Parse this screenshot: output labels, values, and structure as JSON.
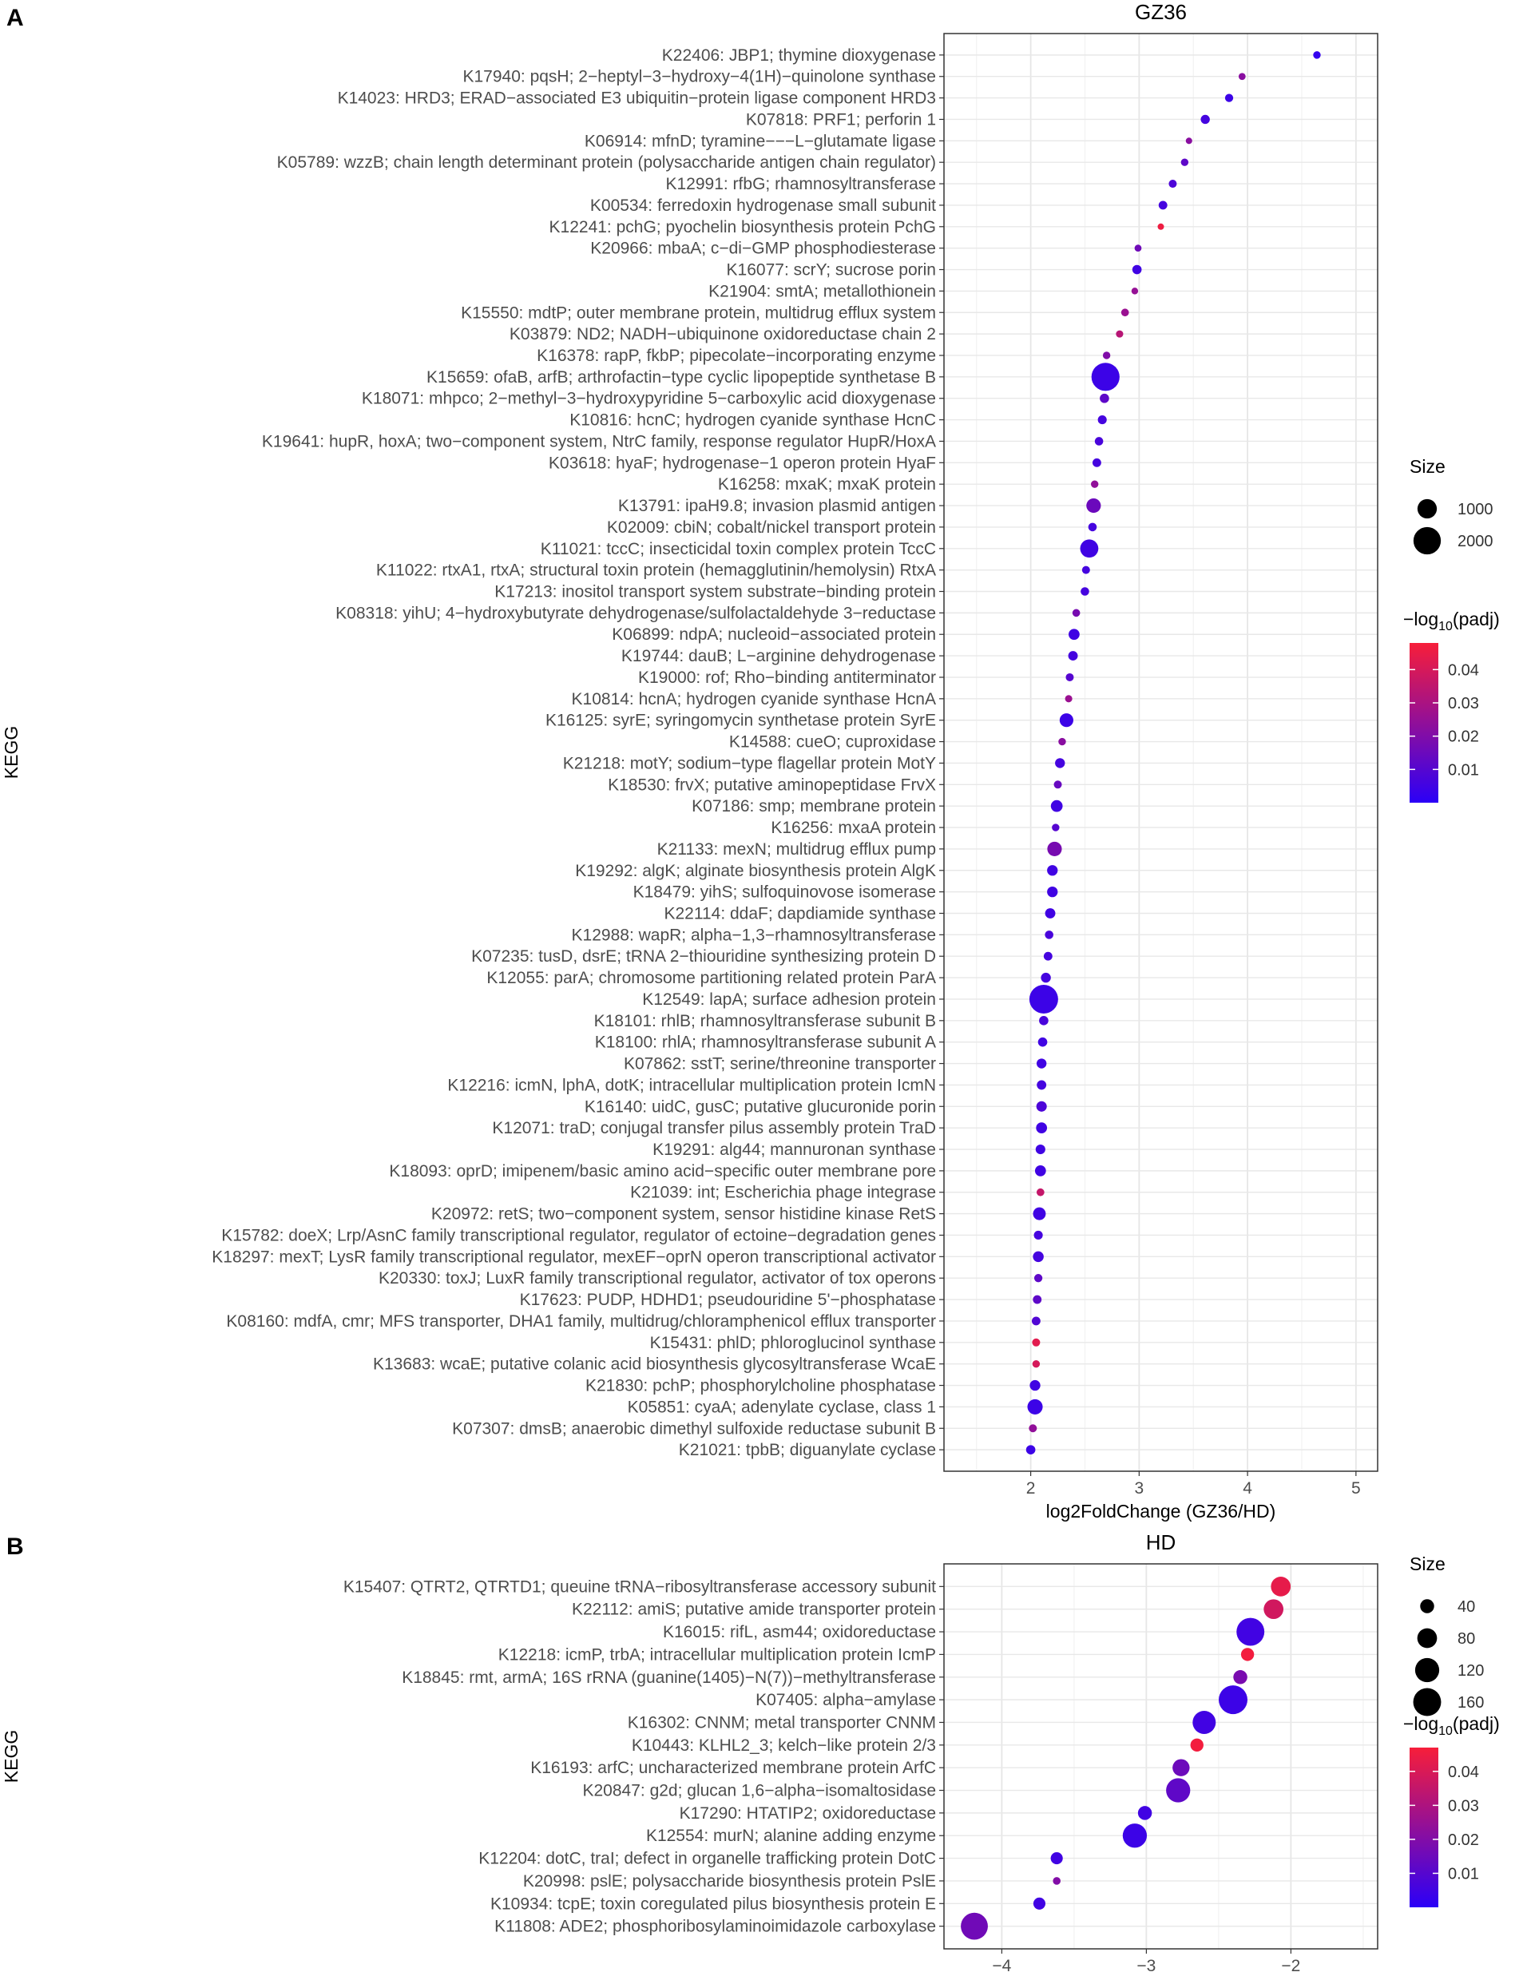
{
  "chart_data": [
    {
      "type": "scatter",
      "panel_label": "A",
      "title": "GZ36",
      "xlabel": "log2FoldChange (GZ36/HD)",
      "ylabel": "KEGG",
      "xlim": [
        1.2,
        5.2
      ],
      "xticks": [
        2,
        3,
        4,
        5
      ],
      "xtick_labels": [
        "2",
        "3",
        "4",
        "5"
      ],
      "grid": true,
      "legend_position": "right",
      "size_legend": {
        "title": "Size",
        "values": [
          1000,
          2000
        ],
        "labels": [
          "1000",
          "2000"
        ]
      },
      "color_legend": {
        "title_prefix": "−log",
        "title_sub": "10",
        "title_suffix": "(padj)",
        "min": 0.0,
        "max": 0.048,
        "ticks": [
          0.01,
          0.02,
          0.03,
          0.04
        ],
        "tick_labels": [
          "0.01",
          "0.02",
          "0.03",
          "0.04"
        ],
        "low_color": "#2B00F7",
        "high_color": "#F71E3A"
      },
      "points": [
        {
          "label": "K22406: JBP1; thymine dioxygenase",
          "x": 4.64,
          "size": 150,
          "padj": 0.002
        },
        {
          "label": "K17940: pqsH; 2−heptyl−3−hydroxy−4(1H)−quinolone synthase",
          "x": 3.95,
          "size": 130,
          "padj": 0.022
        },
        {
          "label": "K14023: HRD3; ERAD−associated E3 ubiquitin−protein ligase component HRD3",
          "x": 3.83,
          "size": 180,
          "padj": 0.004
        },
        {
          "label": "K07818: PRF1; perforin 1",
          "x": 3.61,
          "size": 220,
          "padj": 0.006
        },
        {
          "label": "K06914: mfnD; tyramine−−−L−glutamate ligase",
          "x": 3.46,
          "size": 110,
          "padj": 0.022
        },
        {
          "label": "K05789: wzzB; chain length determinant protein (polysaccharide antigen chain regulator)",
          "x": 3.42,
          "size": 150,
          "padj": 0.012
        },
        {
          "label": "K12991: rfbG; rhamnosyltransferase",
          "x": 3.31,
          "size": 170,
          "padj": 0.008
        },
        {
          "label": "K00534: ferredoxin hydrogenase small subunit",
          "x": 3.22,
          "size": 200,
          "padj": 0.006
        },
        {
          "label": "K12241: pchG; pyochelin biosynthesis protein PchG",
          "x": 3.2,
          "size": 90,
          "padj": 0.046
        },
        {
          "label": "K20966: mbaA; c−di−GMP phosphodiesterase",
          "x": 2.99,
          "size": 130,
          "padj": 0.016
        },
        {
          "label": "K16077: scrY; sucrose porin",
          "x": 2.98,
          "size": 230,
          "padj": 0.005
        },
        {
          "label": "K21904: smtA; metallothionein",
          "x": 2.96,
          "size": 120,
          "padj": 0.025
        },
        {
          "label": "K15550: mdtP; outer membrane protein, multidrug efflux system",
          "x": 2.87,
          "size": 160,
          "padj": 0.026
        },
        {
          "label": "K03879: ND2; NADH−ubiquinone oxidoreductase chain 2",
          "x": 2.82,
          "size": 140,
          "padj": 0.033
        },
        {
          "label": "K16378: rapP, fkbP; pipecolate−incorporating enzyme",
          "x": 2.7,
          "size": 150,
          "padj": 0.02
        },
        {
          "label": "K15659: ofaB, arfB; arthrofactin−type cyclic lipopeptide synthetase B",
          "x": 2.69,
          "size": 2100,
          "padj": 0.004
        },
        {
          "label": "K18071: mhpco; 2−methyl−3−hydroxypyridine 5−carboxylic acid dioxygenase",
          "x": 2.68,
          "size": 230,
          "padj": 0.012
        },
        {
          "label": "K10816: hcnC; hydrogen cyanide synthase HcnC",
          "x": 2.66,
          "size": 210,
          "padj": 0.006
        },
        {
          "label": "K19641: hupR, hoxA; two−component system, NtrC family, response regulator HupR/HoxA",
          "x": 2.63,
          "size": 190,
          "padj": 0.007
        },
        {
          "label": "K03618: hyaF; hydrogenase−1 operon protein HyaF",
          "x": 2.61,
          "size": 200,
          "padj": 0.006
        },
        {
          "label": "K16258: mxaK; mxaK protein",
          "x": 2.59,
          "size": 150,
          "padj": 0.024
        },
        {
          "label": "K13791: ipaH9.8; invasion plasmid antigen",
          "x": 2.58,
          "size": 560,
          "padj": 0.015
        },
        {
          "label": "K02009: cbiN; cobalt/nickel transport protein",
          "x": 2.57,
          "size": 190,
          "padj": 0.006
        },
        {
          "label": "K11021: tccC; insecticidal toxin complex protein TccC",
          "x": 2.54,
          "size": 880,
          "padj": 0.005
        },
        {
          "label": "K11022: rtxA1, rtxA; structural toxin protein (hemagglutinin/hemolysin) RtxA",
          "x": 2.51,
          "size": 170,
          "padj": 0.006
        },
        {
          "label": "K17213: inositol transport system substrate−binding protein",
          "x": 2.5,
          "size": 190,
          "padj": 0.006
        },
        {
          "label": "K08318: yihU; 4−hydroxybutyrate dehydrogenase/sulfolactaldehyde 3−reductase",
          "x": 2.42,
          "size": 160,
          "padj": 0.018
        },
        {
          "label": "K06899: ndpA; nucleoid−associated protein",
          "x": 2.4,
          "size": 320,
          "padj": 0.005
        },
        {
          "label": "K19744: dauB; L−arginine dehydrogenase",
          "x": 2.39,
          "size": 240,
          "padj": 0.006
        },
        {
          "label": "K19000: rof; Rho−binding antiterminator",
          "x": 2.36,
          "size": 170,
          "padj": 0.01
        },
        {
          "label": "K10814: hcnA; hydrogen cyanide synthase HcnA",
          "x": 2.35,
          "size": 140,
          "padj": 0.026
        },
        {
          "label": "K16125: syrE; syringomycin synthetase protein SyrE",
          "x": 2.33,
          "size": 500,
          "padj": 0.004
        },
        {
          "label": "K14588: cueO; cuproxidase",
          "x": 2.29,
          "size": 150,
          "padj": 0.022
        },
        {
          "label": "K21218: motY; sodium−type flagellar protein MotY",
          "x": 2.27,
          "size": 260,
          "padj": 0.006
        },
        {
          "label": "K18530: frvX; putative aminopeptidase FrvX",
          "x": 2.25,
          "size": 170,
          "padj": 0.014
        },
        {
          "label": "K07186: smp; membrane protein",
          "x": 2.24,
          "size": 370,
          "padj": 0.005
        },
        {
          "label": "K16256: mxaA protein",
          "x": 2.23,
          "size": 150,
          "padj": 0.01
        },
        {
          "label": "K21133: mexN; multidrug efflux pump",
          "x": 2.22,
          "size": 560,
          "padj": 0.018
        },
        {
          "label": "K19292: algK; alginate biosynthesis protein AlgK",
          "x": 2.2,
          "size": 300,
          "padj": 0.005
        },
        {
          "label": "K18479: yihS; sulfoquinovose isomerase",
          "x": 2.2,
          "size": 300,
          "padj": 0.005
        },
        {
          "label": "K22114: ddaF; dapdiamide synthase",
          "x": 2.18,
          "size": 280,
          "padj": 0.005
        },
        {
          "label": "K12988: wapR; alpha−1,3−rhamnosyltransferase",
          "x": 2.17,
          "size": 190,
          "padj": 0.007
        },
        {
          "label": "K07235: tusD, dsrE; tRNA 2−thiouridine synthesizing protein D",
          "x": 2.16,
          "size": 200,
          "padj": 0.006
        },
        {
          "label": "K12055: parA; chromosome partitioning related protein ParA",
          "x": 2.14,
          "size": 260,
          "padj": 0.006
        },
        {
          "label": "K12549: lapA; surface adhesion protein",
          "x": 2.12,
          "size": 2200,
          "padj": 0.004
        },
        {
          "label": "K18101: rhlB; rhamnosyltransferase subunit B",
          "x": 2.12,
          "size": 230,
          "padj": 0.007
        },
        {
          "label": "K18100: rhlA; rhamnosyltransferase subunit A",
          "x": 2.11,
          "size": 230,
          "padj": 0.005
        },
        {
          "label": "K07862: sstT; serine/threonine transporter",
          "x": 2.1,
          "size": 260,
          "padj": 0.005
        },
        {
          "label": "K12216: icmN, lphA, dotK; intracellular multiplication protein IcmN",
          "x": 2.1,
          "size": 240,
          "padj": 0.006
        },
        {
          "label": "K16140: uidC, gusC; putative glucuronide porin",
          "x": 2.1,
          "size": 290,
          "padj": 0.008
        },
        {
          "label": "K12071: traD; conjugal transfer pilus assembly protein TraD",
          "x": 2.1,
          "size": 320,
          "padj": 0.005
        },
        {
          "label": "K19291: alg44; mannuronan synthase",
          "x": 2.09,
          "size": 250,
          "padj": 0.005
        },
        {
          "label": "K18093: oprD; imipenem/basic amino acid−specific outer membrane pore",
          "x": 2.09,
          "size": 320,
          "padj": 0.005
        },
        {
          "label": "K21039: int; Escherichia phage integrase",
          "x": 2.09,
          "size": 160,
          "padj": 0.036
        },
        {
          "label": "K20972: retS; two−component system, sensor histidine kinase RetS",
          "x": 2.08,
          "size": 430,
          "padj": 0.005
        },
        {
          "label": "K15782: doeX; Lrp/AsnC family transcriptional regulator, regulator of ectoine−degradation genes",
          "x": 2.07,
          "size": 210,
          "padj": 0.006
        },
        {
          "label": "K18297: mexT; LysR family transcriptional regulator, mexEF−oprN operon transcriptional activator",
          "x": 2.07,
          "size": 310,
          "padj": 0.006
        },
        {
          "label": "K20330: toxJ; LuxR family transcriptional regulator, activator of tox operons",
          "x": 2.07,
          "size": 180,
          "padj": 0.012
        },
        {
          "label": "K17623: PUDP, HDHD1; pseudouridine 5'−phosphatase",
          "x": 2.06,
          "size": 200,
          "padj": 0.012
        },
        {
          "label": "K08160: mdfA, cmr; MFS transporter, DHA1 family, multidrug/chloramphenicol efflux transporter",
          "x": 2.05,
          "size": 200,
          "padj": 0.009
        },
        {
          "label": "K15431: phlD; phloroglucinol synthase",
          "x": 2.05,
          "size": 170,
          "padj": 0.043
        },
        {
          "label": "K13683: wcaE; putative colanic acid biosynthesis glycosyltransferase WcaE",
          "x": 2.05,
          "size": 150,
          "padj": 0.04
        },
        {
          "label": "K21830: pchP; phosphorylcholine phosphatase",
          "x": 2.04,
          "size": 300,
          "padj": 0.005
        },
        {
          "label": "K05851: cyaA; adenylate cyclase, class 1",
          "x": 2.04,
          "size": 620,
          "padj": 0.004
        },
        {
          "label": "K07307: dmsB; anaerobic dimethyl sulfoxide reductase subunit B",
          "x": 2.02,
          "size": 170,
          "padj": 0.024
        },
        {
          "label": "K21021: tpbB; diguanylate cyclase",
          "x": 2.0,
          "size": 230,
          "padj": 0.004
        }
      ]
    },
    {
      "type": "scatter",
      "panel_label": "B",
      "title": "HD",
      "xlabel": "log2FoldChange (GZ36/HD)",
      "ylabel": "KEGG",
      "xlim": [
        -4.4,
        -1.4
      ],
      "xticks": [
        -4,
        -3,
        -2
      ],
      "xtick_labels": [
        "−4",
        "−3",
        "−2"
      ],
      "grid": true,
      "legend_position": "right",
      "size_legend": {
        "title": "Size",
        "values": [
          40,
          80,
          120,
          160
        ],
        "labels": [
          "40",
          "80",
          "120",
          "160"
        ]
      },
      "color_legend": {
        "title_prefix": "−log",
        "title_sub": "10",
        "title_suffix": "(padj)",
        "min": 0.0,
        "max": 0.047,
        "ticks": [
          0.01,
          0.02,
          0.03,
          0.04
        ],
        "tick_labels": [
          "0.01",
          "0.02",
          "0.03",
          "0.04"
        ],
        "low_color": "#2B00F7",
        "high_color": "#F71E3A"
      },
      "points": [
        {
          "label": "K15407: QTRT2, QTRTD1; queuine tRNA−ribosyltransferase accessory subunit",
          "x": -2.07,
          "size": 80,
          "padj": 0.043
        },
        {
          "label": "K22112: amiS; putative amide transporter protein",
          "x": -2.12,
          "size": 80,
          "padj": 0.038
        },
        {
          "label": "K16015: rifL, asm44; oxidoreductase",
          "x": -2.28,
          "size": 160,
          "padj": 0.005
        },
        {
          "label": "K12218: icmP, trbA; intracellular multiplication protein IcmP",
          "x": -2.3,
          "size": 35,
          "padj": 0.046
        },
        {
          "label": "K18845: rmt, armA; 16S rRNA (guanine(1405)−N(7))−methyltransferase",
          "x": -2.35,
          "size": 40,
          "padj": 0.018
        },
        {
          "label": "K07405: alpha−amylase",
          "x": -2.4,
          "size": 170,
          "padj": 0.004
        },
        {
          "label": "K16302: CNNM; metal transporter CNNM",
          "x": -2.6,
          "size": 110,
          "padj": 0.005
        },
        {
          "label": "K10443: KLHL2_3; kelch−like protein 2/3",
          "x": -2.65,
          "size": 35,
          "padj": 0.046
        },
        {
          "label": "K16193: arfC; uncharacterized membrane protein ArfC",
          "x": -2.76,
          "size": 60,
          "padj": 0.015
        },
        {
          "label": "K20847: g2d; glucan 1,6−alpha−isomaltosidase",
          "x": -2.78,
          "size": 120,
          "padj": 0.012
        },
        {
          "label": "K17290: HTATIP2; oxidoreductase",
          "x": -3.01,
          "size": 40,
          "padj": 0.005
        },
        {
          "label": "K12554: murN; alanine adding enzyme",
          "x": -3.08,
          "size": 120,
          "padj": 0.004
        },
        {
          "label": "K12204: dotC, traI; defect in organelle trafficking protein DotC",
          "x": -3.62,
          "size": 30,
          "padj": 0.005
        },
        {
          "label": "K20998: pslE; polysaccharide biosynthesis protein PslE",
          "x": -3.62,
          "size": 12,
          "padj": 0.02
        },
        {
          "label": "K10934: tcpE; toxin coregulated pilus biosynthesis protein E",
          "x": -3.74,
          "size": 30,
          "padj": 0.005
        },
        {
          "label": "K11808: ADE2; phosphoribosylaminoimidazole carboxylase",
          "x": -4.19,
          "size": 150,
          "padj": 0.016
        }
      ]
    }
  ]
}
